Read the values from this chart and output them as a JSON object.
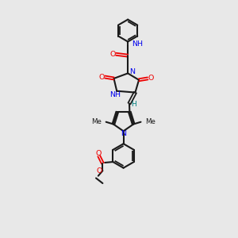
{
  "bg_color": "#e8e8e8",
  "bond_color": "#1a1a1a",
  "N_color": "#0000ee",
  "O_color": "#ee0000",
  "H_color": "#008080",
  "lw": 1.5,
  "lw_double": 1.3,
  "figsize": [
    3.0,
    3.0
  ],
  "dpi": 100,
  "xlim": [
    0,
    10
  ],
  "ylim": [
    0,
    16
  ]
}
